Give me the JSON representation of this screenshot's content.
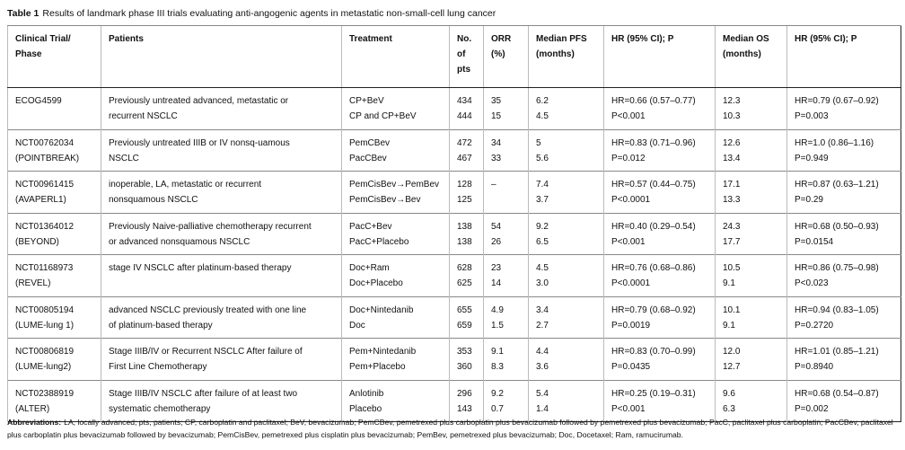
{
  "title": {
    "label": "Table 1",
    "text": "Results of landmark phase III trials evaluating anti-angogenic agents in metastatic non-small-cell lung cancer"
  },
  "table": {
    "header": [
      [
        "Clinical Trial/",
        "Phase"
      ],
      [
        "Patients"
      ],
      [
        "Treatment"
      ],
      [
        "No.",
        "of",
        "pts"
      ],
      [
        "ORR",
        "(%)"
      ],
      [
        "Median PFS",
        "(months)"
      ],
      [
        "HR (95% CI); P"
      ],
      [
        "Median OS",
        "(months)"
      ],
      [
        "HR (95% CI); P"
      ]
    ],
    "rows": [
      [
        [
          "ECOG4599"
        ],
        [
          "Previously untreated advanced, metastatic or",
          "recurrent NSCLC"
        ],
        [
          "CP+BeV",
          "CP and CP+BeV"
        ],
        [
          "434",
          "444"
        ],
        [
          "35",
          "15"
        ],
        [
          "6.2",
          "4.5"
        ],
        [
          "HR=0.66 (0.57–0.77)",
          "P<0.001"
        ],
        [
          "12.3",
          "10.3"
        ],
        [
          "HR=0.79 (0.67–0.92)",
          "P=0.003"
        ]
      ],
      [
        [
          "NCT00762034",
          "(POINTBREAK)"
        ],
        [
          "Previously untreated IIIB or IV nonsq-uamous",
          "NSCLC"
        ],
        [
          "PemCBev",
          "PacCBev"
        ],
        [
          "472",
          "467"
        ],
        [
          "34",
          "33"
        ],
        [
          "5",
          "5.6"
        ],
        [
          "HR=0.83 (0.71–0.96)",
          "P=0.012"
        ],
        [
          "12.6",
          "13.4"
        ],
        [
          "HR=1.0 (0.86–1.16)",
          "P=0.949"
        ]
      ],
      [
        [
          "NCT00961415",
          "(AVAPERL1)"
        ],
        [
          "inoperable, LA, metastatic or recurrent",
          "nonsquamous NSCLC"
        ],
        [
          "PemCisBev→PemBev",
          "PemCisBev→Bev"
        ],
        [
          "128",
          "125"
        ],
        [
          "–"
        ],
        [
          "7.4",
          "3.7"
        ],
        [
          "HR=0.57 (0.44–0.75)",
          "P<0.0001"
        ],
        [
          "17.1",
          "13.3"
        ],
        [
          "HR=0.87 (0.63–1.21)",
          "P=0.29"
        ]
      ],
      [
        [
          "NCT01364012",
          "(BEYOND)"
        ],
        [
          "Previously Naive-palliative chemotherapy recurrent",
          "or advanced nonsquamous NSCLC"
        ],
        [
          "PacC+Bev",
          "PacC+Placebo"
        ],
        [
          "138",
          "138"
        ],
        [
          "54",
          "26"
        ],
        [
          "9.2",
          "6.5"
        ],
        [
          "HR=0.40 (0.29–0.54)",
          "P<0.001"
        ],
        [
          "24.3",
          "17.7"
        ],
        [
          "HR=0.68 (0.50–0.93)",
          "P=0.0154"
        ]
      ],
      [
        [
          "NCT01168973",
          "(REVEL)"
        ],
        [
          "stage IV NSCLC after platinum-based therapy"
        ],
        [
          "Doc+Ram",
          "Doc+Placebo"
        ],
        [
          "628",
          "625"
        ],
        [
          "23",
          "14"
        ],
        [
          "4.5",
          "3.0"
        ],
        [
          "HR=0.76 (0.68–0.86)",
          "P<0.0001"
        ],
        [
          "10.5",
          "9.1"
        ],
        [
          "HR=0.86 (0.75–0.98)",
          "P<0.023"
        ]
      ],
      [
        [
          "NCT00805194",
          "(LUME-lung 1)"
        ],
        [
          "advanced NSCLC previously treated with one line",
          "of platinum-based therapy"
        ],
        [
          "Doc+Nintedanib",
          "Doc"
        ],
        [
          "655",
          "659"
        ],
        [
          "4.9",
          "1.5"
        ],
        [
          "3.4",
          "2.7"
        ],
        [
          "HR=0.79 (0.68–0.92)",
          "P=0.0019"
        ],
        [
          "10.1",
          "9.1"
        ],
        [
          "HR=0.94 (0.83–1.05)",
          "P=0.2720"
        ]
      ],
      [
        [
          "NCT00806819",
          "(LUME-lung2)"
        ],
        [
          "Stage IIIB/IV or Recurrent NSCLC After failure of",
          "First Line Chemotherapy"
        ],
        [
          "Pem+Nintedanib",
          "Pem+Placebo"
        ],
        [
          "353",
          "360"
        ],
        [
          "9.1",
          "8.3"
        ],
        [
          "4.4",
          "3.6"
        ],
        [
          "HR=0.83 (0.70–0.99)",
          "P=0.0435"
        ],
        [
          "12.0",
          "12.7"
        ],
        [
          "HR=1.01 (0.85–1.21)",
          "P=0.8940"
        ]
      ],
      [
        [
          "NCT02388919",
          "(ALTER)"
        ],
        [
          "Stage IIIB/IV NSCLC after failure of at least two",
          "systematic chemotherapy"
        ],
        [
          "Anlotinib",
          "Placebo"
        ],
        [
          "296",
          "143"
        ],
        [
          "9.2",
          "0.7"
        ],
        [
          "5.4",
          "1.4"
        ],
        [
          "HR=0.25 (0.19–0.31)",
          "P<0.001"
        ],
        [
          "9.6",
          "6.3"
        ],
        [
          "HR=0.68 (0.54–0.87)",
          "P=0.002"
        ]
      ]
    ]
  },
  "footnote": {
    "label": "Abbreviations:",
    "text": "LA, locally advanced; pts, patients; CP, carboplatin and paclitaxel; BeV, bevacizumab; PemCBev, pemetrexed plus carboplatin plus bevacizumab followed by pemetrexed plus bevacizumab; PacC, paclitaxel plus carboplatin; PacCBev, paclitaxel plus carboplatin plus bevacizumab followed by bevacizumab; PemCisBev, pemetrexed plus cisplatin plus bevacizumab; PemBev, pemetrexed plus bevacizumab; Doc, Docetaxel; Ram, ramucirumab."
  }
}
